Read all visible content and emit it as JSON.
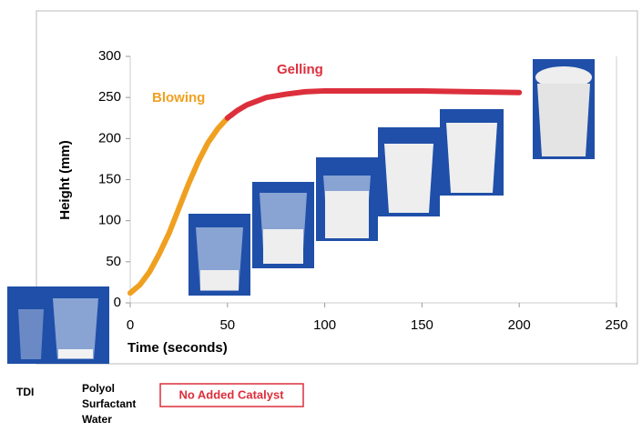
{
  "chart_data": {
    "type": "line",
    "x_label": "Time (seconds)",
    "y_label": "Height (mm)",
    "xlim": [
      0,
      250
    ],
    "xticks": [
      0,
      50,
      100,
      150,
      200,
      250
    ],
    "ylim": [
      0,
      300
    ],
    "yticks": [
      0,
      50,
      100,
      150,
      200,
      250,
      300
    ],
    "series": [
      {
        "name": "Blowing",
        "color": "#f0a020",
        "x": [
          0,
          5,
          10,
          15,
          20,
          25,
          30,
          35,
          40,
          45,
          50
        ],
        "values": [
          12,
          22,
          38,
          60,
          85,
          115,
          145,
          172,
          195,
          212,
          225
        ]
      },
      {
        "name": "Gelling",
        "color": "#dc2f3c",
        "x": [
          50,
          55,
          60,
          70,
          80,
          90,
          100,
          125,
          150,
          175,
          200
        ],
        "values": [
          225,
          234,
          241,
          250,
          254,
          257,
          258,
          258,
          258,
          257,
          256
        ]
      }
    ],
    "legend_texts": {
      "tdi": "TDI",
      "polyol": [
        "Polyol",
        "Surfactant",
        "Water"
      ],
      "catalyst": "No Added Catalyst"
    }
  }
}
